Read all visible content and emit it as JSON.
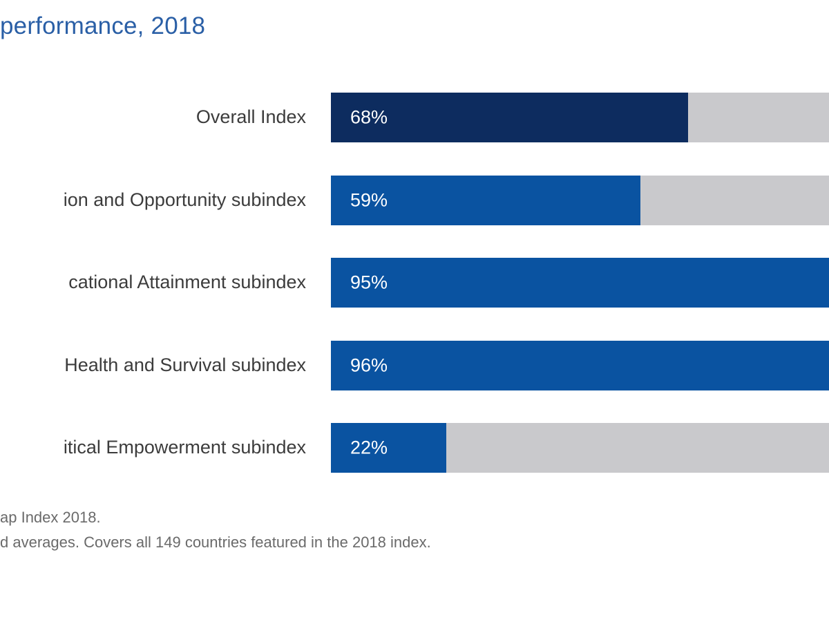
{
  "colors": {
    "title": "#2a5fa6",
    "overall": "#0d2c5f",
    "subindex": "#0a53a1",
    "remainder": "#c9c9cc",
    "label": "#3c3c3c",
    "note": "#6a6a6a"
  },
  "chart_data": {
    "type": "bar",
    "orientation": "horizontal",
    "stacked_to": 100,
    "title": "performance, 2018",
    "categories": [
      "Overall Index",
      "ion and Opportunity subindex",
      "cational Attainment subindex",
      "Health and Survival subindex",
      "itical Empowerment subindex"
    ],
    "values": [
      68,
      59,
      95,
      96,
      22
    ],
    "value_labels": [
      "68%",
      "59%",
      "95%",
      "96%",
      "22%"
    ],
    "xlim": [
      0,
      100
    ],
    "grid": false,
    "legend": "none"
  },
  "notes": [
    "ap Index 2018.",
    "d averages. Covers all 149 countries featured in the 2018 index."
  ]
}
